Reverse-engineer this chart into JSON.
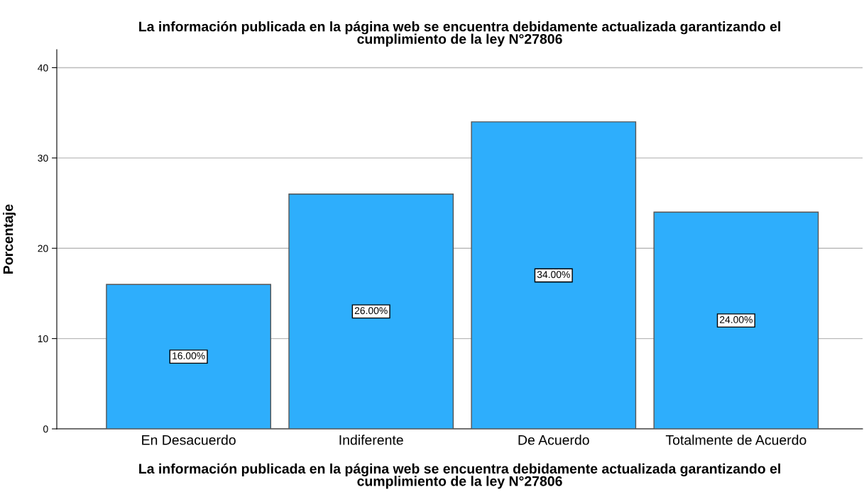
{
  "chart_data": {
    "type": "bar",
    "title": "La información publicada en la página web se encuentra debidamente actualizada garantizando el\ncumplimiento de la ley N°27806",
    "xlabel": "La información publicada en la página web se encuentra debidamente actualizada garantizando el\ncumplimiento de la ley N°27806",
    "ylabel": "Porcentaje",
    "categories": [
      "En Desacuerdo",
      "Indiferente",
      "De Acuerdo",
      "Totalmente de Acuerdo"
    ],
    "values": [
      16,
      26,
      34,
      24
    ],
    "value_labels": [
      "16.00%",
      "26.00%",
      "34.00%",
      "24.00%"
    ],
    "color": "#2eaefc",
    "ylim": [
      0,
      42
    ],
    "yticks": [
      0,
      10,
      20,
      30,
      40
    ],
    "grid": "y",
    "legend": false
  }
}
